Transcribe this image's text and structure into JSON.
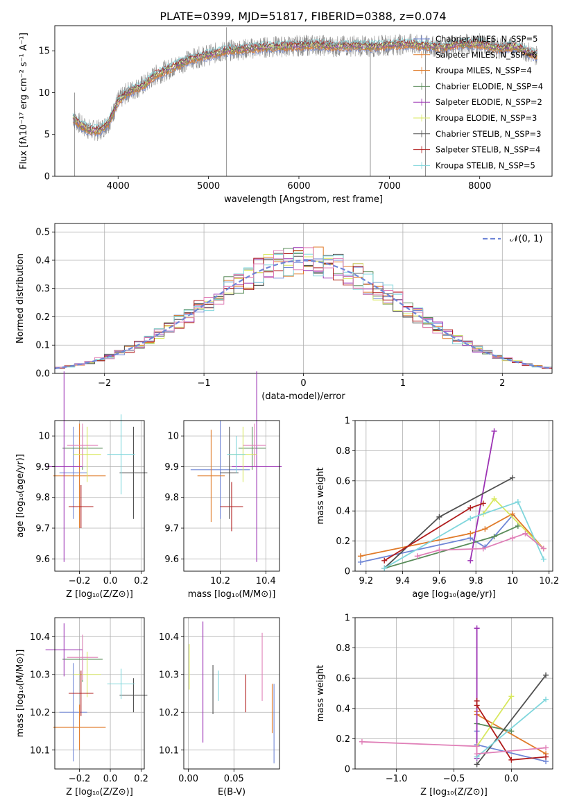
{
  "figure_title": "PLATE=0399, MJD=51817, FIBERID=0388, z=0.074",
  "colors": {
    "c0": "#6f86d6",
    "c1": "#e07b2a",
    "c2": "#5a8c5a",
    "c3": "#9c32b4",
    "c4": "#d8e85e",
    "c5": "#505050",
    "c6": "#b01c1c",
    "c7": "#7fd6dc",
    "c8": "#e080b8",
    "c9": "#8a8a8a"
  },
  "chart_data": [
    {
      "id": "spectrum",
      "type": "line",
      "xlabel": "wavelength [Angstrom, rest frame]",
      "ylabel": "Flux [fλ10⁻¹⁷ erg cm⁻² s⁻¹ A⁻¹]",
      "xlim": [
        3300,
        8800
      ],
      "ylim": [
        0,
        18
      ],
      "xticks": [
        4000,
        5000,
        6000,
        7000,
        8000
      ],
      "yticks": [
        0,
        5,
        10,
        15
      ],
      "grid": false,
      "legend_position": "right",
      "series": [
        {
          "name": "Chabrier MILES, N_SSP=5",
          "color": "c0"
        },
        {
          "name": "Salpeter MILES, N_SSP=6",
          "color": "c1"
        },
        {
          "name": "Kroupa MILES, N_SSP=4",
          "color": "c1"
        },
        {
          "name": "Chabrier ELODIE, N_SSP=4",
          "color": "c2"
        },
        {
          "name": "Salpeter ELODIE, N_SSP=2",
          "color": "c3"
        },
        {
          "name": "Kroupa ELODIE, N_SSP=3",
          "color": "c4"
        },
        {
          "name": "Chabrier STELIB, N_SSP=3",
          "color": "c5"
        },
        {
          "name": "Salpeter STELIB, N_SSP=4",
          "color": "c6"
        },
        {
          "name": "Kroupa STELIB, N_SSP=5",
          "color": "c7"
        }
      ],
      "continuum": {
        "x": [
          3500,
          3600,
          3700,
          3800,
          3900,
          4000,
          4100,
          4200,
          4300,
          4400,
          4600,
          4800,
          5000,
          5200,
          5400,
          5600,
          5800,
          6000,
          6200,
          6400,
          6600,
          6800,
          7000,
          7200,
          7400,
          7600,
          7800,
          8000,
          8200,
          8400,
          8600
        ],
        "y": [
          7.0,
          6.0,
          5.5,
          5.5,
          6.5,
          9.0,
          10.0,
          10.5,
          11.0,
          12.0,
          13.0,
          14.0,
          14.5,
          15.0,
          15.2,
          15.4,
          15.5,
          15.6,
          15.7,
          15.5,
          15.6,
          15.5,
          15.7,
          15.8,
          15.6,
          15.4,
          15.8,
          15.8,
          15.3,
          15.5,
          14.5
        ]
      },
      "spikes": [
        {
          "x": 3520,
          "y_low": 0,
          "y_high": 10.0
        },
        {
          "x": 5200,
          "y_low": 0,
          "y_high": 17.8
        },
        {
          "x": 6790,
          "y_low": 0,
          "y_high": 15.0
        },
        {
          "x": 7400,
          "y_low": 0,
          "y_high": 15.0
        }
      ]
    },
    {
      "id": "residuals",
      "type": "histogram",
      "xlabel": "(data-model)/error",
      "ylabel": "Normed distribution",
      "xlim": [
        -2.5,
        2.5
      ],
      "ylim": [
        0,
        0.53
      ],
      "xticks": [
        -2,
        -1,
        0,
        1,
        2
      ],
      "yticks": [
        0.0,
        0.1,
        0.2,
        0.3,
        0.4,
        0.5
      ],
      "grid": true,
      "legend": [
        {
          "name": "𝒩(0, 1)",
          "color": "c0",
          "style": "dashed"
        }
      ],
      "legend_position": "top-right",
      "bin_width": 0.1
    },
    {
      "id": "age_vs_Z",
      "type": "scatter",
      "xlabel": "Z [log₁₀(Z/Z⊙)]",
      "ylabel": "age [log₁₀(age/yr)]",
      "xlim": [
        -0.36,
        0.22
      ],
      "ylim": [
        9.56,
        10.05
      ],
      "xticks": [
        -0.2,
        0.0,
        0.2
      ],
      "xticklabels": [
        "−0.2",
        "0.0",
        "0.2"
      ],
      "yticks": [
        9.6,
        9.7,
        9.8,
        9.9,
        10.0
      ],
      "grid": true,
      "points": [
        {
          "x": -0.24,
          "y": 9.88,
          "xerr": 0.09,
          "yerr": 0.15,
          "color": "c0"
        },
        {
          "x": -0.2,
          "y": 9.87,
          "xerr": 0.17,
          "yerr": 0.17,
          "color": "c1"
        },
        {
          "x": -0.18,
          "y": 9.96,
          "xerr": 0.13,
          "yerr": 0.07,
          "color": "c2"
        },
        {
          "x": -0.3,
          "y": 9.9,
          "xerr": 0.12,
          "yerr": 0.31,
          "color": "c3"
        },
        {
          "x": -0.15,
          "y": 9.94,
          "xerr": 0.09,
          "yerr": 0.09,
          "color": "c4"
        },
        {
          "x": 0.15,
          "y": 9.88,
          "xerr": 0.09,
          "yerr": 0.15,
          "color": "c5"
        },
        {
          "x": -0.19,
          "y": 9.77,
          "xerr": 0.08,
          "yerr": 0.07,
          "color": "c6"
        },
        {
          "x": 0.07,
          "y": 9.94,
          "xerr": 0.09,
          "yerr": 0.13,
          "color": "c7"
        },
        {
          "x": -0.18,
          "y": 9.97,
          "xerr": 0.1,
          "yerr": 0.07,
          "color": "c8"
        }
      ]
    },
    {
      "id": "age_vs_mass",
      "type": "scatter",
      "xlabel": "mass [log₁₀(M/M⊙)]",
      "ylabel": "",
      "xlim": [
        10.04,
        10.46
      ],
      "ylim": [
        9.56,
        10.05
      ],
      "xticks": [
        10.2,
        10.4
      ],
      "yticks": [
        9.6,
        9.7,
        9.8,
        9.9,
        10.0
      ],
      "grid": true,
      "points": [
        {
          "x": 10.2,
          "y": 9.89,
          "xerr": 0.13,
          "yerr": 0.16,
          "color": "c0"
        },
        {
          "x": 10.16,
          "y": 9.87,
          "xerr": 0.06,
          "yerr": 0.15,
          "color": "c1"
        },
        {
          "x": 10.34,
          "y": 9.96,
          "xerr": 0.06,
          "yerr": 0.07,
          "color": "c2"
        },
        {
          "x": 10.36,
          "y": 9.9,
          "xerr": 0.11,
          "yerr": 0.31,
          "color": "c3"
        },
        {
          "x": 10.3,
          "y": 9.94,
          "xerr": 0.06,
          "yerr": 0.09,
          "color": "c4"
        },
        {
          "x": 10.24,
          "y": 9.88,
          "xerr": 0.04,
          "yerr": 0.15,
          "color": "c5"
        },
        {
          "x": 10.25,
          "y": 9.77,
          "xerr": 0.05,
          "yerr": 0.08,
          "color": "c6"
        },
        {
          "x": 10.27,
          "y": 9.94,
          "xerr": 0.04,
          "yerr": 0.06,
          "color": "c7"
        },
        {
          "x": 10.35,
          "y": 9.97,
          "xerr": 0.05,
          "yerr": 0.07,
          "color": "c8"
        }
      ]
    },
    {
      "id": "weight_vs_age",
      "type": "line",
      "xlabel": "age [log₁₀(age/yr)]",
      "ylabel": "mass weight",
      "xlim": [
        9.14,
        10.22
      ],
      "ylim": [
        0.0,
        1.0
      ],
      "xticks": [
        9.2,
        9.4,
        9.6,
        9.8,
        10.0,
        10.2
      ],
      "yticks": [
        0.0,
        0.2,
        0.4,
        0.6,
        0.8,
        1.0
      ],
      "grid": true,
      "series": [
        {
          "color": "c0",
          "x": [
            9.17,
            9.77,
            9.85,
            10.0
          ],
          "y": [
            0.06,
            0.22,
            0.16,
            0.37
          ]
        },
        {
          "color": "c1",
          "x": [
            9.17,
            9.77,
            9.85,
            10.0,
            10.17
          ],
          "y": [
            0.1,
            0.25,
            0.28,
            0.38,
            0.15
          ]
        },
        {
          "color": "c2",
          "x": [
            9.3,
            9.9,
            10.03
          ],
          "y": [
            0.02,
            0.23,
            0.3
          ]
        },
        {
          "color": "c3",
          "x": [
            9.77,
            9.9
          ],
          "y": [
            0.07,
            0.93
          ]
        },
        {
          "color": "c4",
          "x": [
            9.84,
            9.9,
            10.17
          ],
          "y": [
            0.38,
            0.48,
            0.15
          ]
        },
        {
          "color": "c5",
          "x": [
            9.3,
            9.6,
            10.0
          ],
          "y": [
            0.02,
            0.36,
            0.62
          ]
        },
        {
          "color": "c6",
          "x": [
            9.3,
            9.77,
            9.84
          ],
          "y": [
            0.07,
            0.42,
            0.45
          ]
        },
        {
          "color": "c7",
          "x": [
            9.3,
            9.77,
            10.03,
            10.17
          ],
          "y": [
            0.02,
            0.35,
            0.46,
            0.08
          ]
        },
        {
          "color": "c8",
          "x": [
            9.48,
            9.6,
            9.84,
            10.0,
            10.07,
            10.17
          ],
          "y": [
            0.1,
            0.14,
            0.15,
            0.22,
            0.25,
            0.15
          ]
        }
      ]
    },
    {
      "id": "mass_vs_Z",
      "type": "scatter",
      "xlabel": "Z [log₁₀(Z/Z⊙)]",
      "ylabel": "mass [log₁₀(M/M⊙)]",
      "xlim": [
        -0.36,
        0.22
      ],
      "ylim": [
        10.05,
        10.45
      ],
      "xticks": [
        -0.2,
        0.0,
        0.2
      ],
      "xticklabels": [
        "−0.2",
        "0.0",
        "0.2"
      ],
      "yticks": [
        10.1,
        10.2,
        10.3,
        10.4
      ],
      "grid": true,
      "points": [
        {
          "x": -0.24,
          "y": 10.2,
          "xerr": 0.09,
          "yerr": 0.13,
          "color": "c0"
        },
        {
          "x": -0.2,
          "y": 10.16,
          "xerr": 0.17,
          "yerr": 0.06,
          "color": "c1"
        },
        {
          "x": -0.18,
          "y": 10.34,
          "xerr": 0.13,
          "yerr": 0.06,
          "color": "c2"
        },
        {
          "x": -0.3,
          "y": 10.365,
          "xerr": 0.12,
          "yerr": 0.07,
          "color": "c3"
        },
        {
          "x": -0.15,
          "y": 10.3,
          "xerr": 0.09,
          "yerr": 0.06,
          "color": "c4"
        },
        {
          "x": 0.15,
          "y": 10.245,
          "xerr": 0.09,
          "yerr": 0.045,
          "color": "c5"
        },
        {
          "x": -0.19,
          "y": 10.25,
          "xerr": 0.08,
          "yerr": 0.06,
          "color": "c6"
        },
        {
          "x": 0.07,
          "y": 10.275,
          "xerr": 0.09,
          "yerr": 0.04,
          "color": "c7"
        },
        {
          "x": -0.18,
          "y": 10.345,
          "xerr": 0.1,
          "yerr": 0.06,
          "color": "c8"
        }
      ]
    },
    {
      "id": "mass_vs_ebv",
      "type": "scatter",
      "xlabel": "E(B-V)",
      "ylabel": "",
      "xlim": [
        -0.005,
        0.1
      ],
      "ylim": [
        10.05,
        10.45
      ],
      "xticks": [
        0.0,
        0.05
      ],
      "xticklabels": [
        "0.00",
        "0.05"
      ],
      "yticks": [
        10.1,
        10.2,
        10.3,
        10.4
      ],
      "grid": true,
      "points": [
        {
          "x": 0.001,
          "y": 10.32,
          "xerr": 0,
          "yerr": 0.06,
          "color": "c4"
        },
        {
          "x": 0.016,
          "y": 10.28,
          "xerr": 0,
          "yerr": 0.16,
          "color": "c3"
        },
        {
          "x": 0.027,
          "y": 10.26,
          "xerr": 0,
          "yerr": 0.065,
          "color": "c5"
        },
        {
          "x": 0.033,
          "y": 10.27,
          "xerr": 0,
          "yerr": 0.04,
          "color": "c7"
        },
        {
          "x": 0.063,
          "y": 10.25,
          "xerr": 0,
          "yerr": 0.05,
          "color": "c6"
        },
        {
          "x": 0.081,
          "y": 10.32,
          "xerr": 0,
          "yerr": 0.09,
          "color": "c8"
        },
        {
          "x": 0.092,
          "y": 10.21,
          "xerr": 0,
          "yerr": 0.065,
          "color": "c1"
        },
        {
          "x": 0.094,
          "y": 10.17,
          "xerr": 0,
          "yerr": 0.105,
          "color": "c0"
        }
      ]
    },
    {
      "id": "weight_vs_Z",
      "type": "line",
      "xlabel": "Z [log₁₀(Z/Z⊙)]",
      "ylabel": "mass weight",
      "xlim": [
        -1.36,
        0.36
      ],
      "ylim": [
        0.0,
        1.0
      ],
      "xticks": [
        -1.0,
        -0.5,
        0.0
      ],
      "xticklabels": [
        "−1.0",
        "−0.5",
        "0.0"
      ],
      "yticks": [
        0.0,
        0.2,
        0.4,
        0.6,
        0.8,
        1.0
      ],
      "grid": true,
      "series": [
        {
          "color": "c0",
          "x": [
            -0.3,
            -0.3,
            0.3
          ],
          "y": [
            0.25,
            0.16,
            0.05
          ]
        },
        {
          "color": "c1",
          "x": [
            -0.3,
            -0.3,
            0.3
          ],
          "y": [
            0.38,
            0.36,
            0.1
          ]
        },
        {
          "color": "c2",
          "x": [
            -0.3,
            0.0
          ],
          "y": [
            0.3,
            0.25
          ]
        },
        {
          "color": "c3",
          "x": [
            -0.3,
            -0.3
          ],
          "y": [
            0.07,
            0.93
          ]
        },
        {
          "color": "c4",
          "x": [
            -0.3,
            0.0
          ],
          "y": [
            0.15,
            0.48
          ]
        },
        {
          "color": "c5",
          "x": [
            -0.3,
            0.3
          ],
          "y": [
            0.03,
            0.62
          ]
        },
        {
          "color": "c6",
          "x": [
            -0.3,
            -0.3,
            0.0,
            0.3
          ],
          "y": [
            0.45,
            0.42,
            0.06,
            0.08
          ]
        },
        {
          "color": "c7",
          "x": [
            -0.3,
            0.3
          ],
          "y": [
            0.08,
            0.46
          ]
        },
        {
          "color": "c8",
          "x": [
            -1.3,
            -0.3,
            -0.3,
            0.3
          ],
          "y": [
            0.18,
            0.15,
            0.1,
            0.14
          ]
        }
      ]
    }
  ]
}
